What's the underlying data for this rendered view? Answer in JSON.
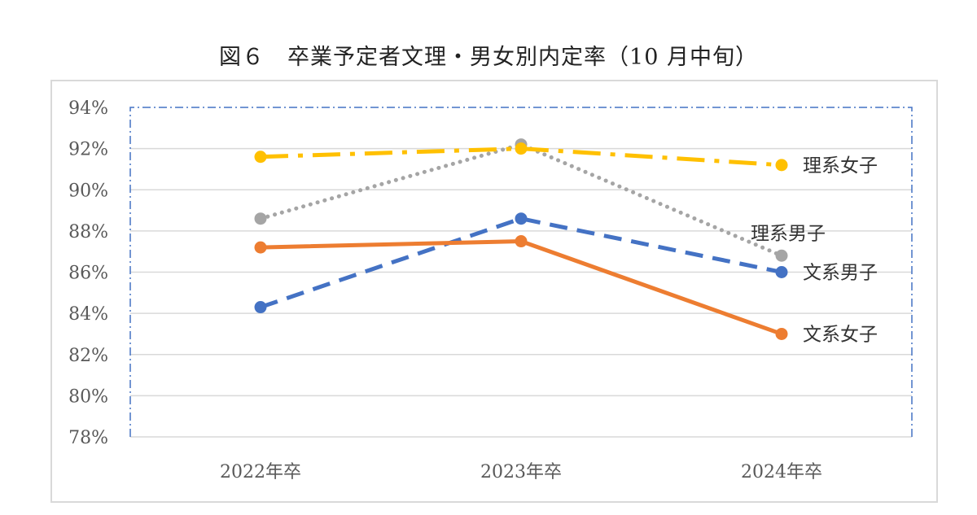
{
  "title": "図６　卒業予定者文理・男女別内定率（10 月中旬）",
  "chart_data": {
    "type": "line",
    "categories": [
      "2022年卒",
      "2023年卒",
      "2024年卒"
    ],
    "ylim": [
      78,
      94
    ],
    "yticks": [
      "78%",
      "80%",
      "82%",
      "84%",
      "86%",
      "88%",
      "90%",
      "92%",
      "94%"
    ],
    "ytick_values": [
      78,
      80,
      82,
      84,
      86,
      88,
      90,
      92,
      94
    ],
    "grid": true,
    "legend": "none (direct labels at right end of series)",
    "series": [
      {
        "name": "理系女子",
        "values": [
          91.6,
          92.0,
          91.2
        ],
        "color": "#FFC000",
        "line_style": "dash-dot"
      },
      {
        "name": "理系男子",
        "values": [
          88.6,
          92.2,
          86.8
        ],
        "color": "#A5A5A5",
        "line_style": "dotted"
      },
      {
        "name": "文系男子",
        "values": [
          84.3,
          88.6,
          86.0
        ],
        "color": "#4472C4",
        "line_style": "dashed"
      },
      {
        "name": "文系女子",
        "values": [
          87.2,
          87.5,
          83.0
        ],
        "color": "#ED7D31",
        "line_style": "solid"
      }
    ]
  }
}
